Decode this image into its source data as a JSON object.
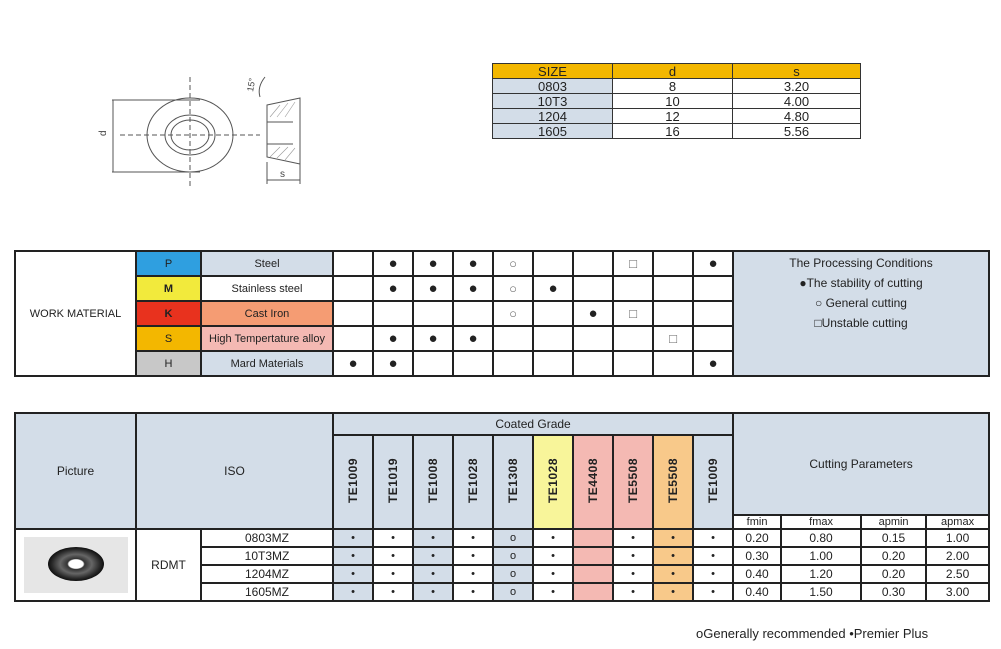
{
  "drawing": {
    "angle_label": "15°",
    "d_label": "d",
    "s_label": "s"
  },
  "size_table": {
    "headers": [
      "SIZE",
      "d",
      "s"
    ],
    "rows": [
      [
        "0803",
        "8",
        "3.20"
      ],
      [
        "10T3",
        "10",
        "4.00"
      ],
      [
        "1204",
        "12",
        "4.80"
      ],
      [
        "1605",
        "16",
        "5.56"
      ]
    ]
  },
  "work_material": {
    "label": "WORK MATERIAL",
    "rows": [
      {
        "code": "P",
        "name": "Steel",
        "code_color": "#2f9fe0",
        "name_color": "#d3dde8",
        "marks": [
          "",
          "●",
          "●",
          "●",
          "○",
          "",
          "",
          "□",
          "",
          "●"
        ]
      },
      {
        "code": "M",
        "name": "Stainless steel",
        "code_color": "#f2ea3c",
        "name_color": "#ffffff",
        "marks": [
          "",
          "●",
          "●",
          "●",
          "○",
          "●",
          "",
          "",
          "",
          ""
        ]
      },
      {
        "code": "K",
        "name": "Cast Iron",
        "code_color": "#e8321e",
        "name_color": "#f59c73",
        "marks": [
          "",
          "",
          "",
          "",
          "○",
          "",
          "●",
          "□",
          "",
          ""
        ]
      },
      {
        "code": "S",
        "name": "High Tempertature alloy",
        "code_color": "#f3b700",
        "name_color": "#f4b9b3",
        "marks": [
          "",
          "●",
          "●",
          "●",
          "",
          "",
          "",
          "",
          "□",
          ""
        ]
      },
      {
        "code": "H",
        "name": "Mard Materials",
        "code_color": "#c8c8c8",
        "name_color": "#d3dde8",
        "marks": [
          "●",
          "●",
          "",
          "",
          "",
          "",
          "",
          "",
          "",
          "●"
        ]
      }
    ],
    "conditions": {
      "title": "The Processing Conditions",
      "items": [
        "●The stability of cutting",
        "○ General cutting",
        "□Unstable cutting"
      ]
    }
  },
  "grade_table": {
    "picture_label": "Picture",
    "iso_label": "ISO",
    "coated_label": "Coated Grade",
    "cutting_label": "Cutting Parameters",
    "grades": [
      {
        "name": "TE1009",
        "color": "#d3dde8"
      },
      {
        "name": "TE1019",
        "color": "#d3dde8"
      },
      {
        "name": "TE1008",
        "color": "#d3dde8"
      },
      {
        "name": "TE1028",
        "color": "#d3dde8"
      },
      {
        "name": "TE1308",
        "color": "#d3dde8"
      },
      {
        "name": "TE1028",
        "color": "#f8f59a"
      },
      {
        "name": "TE4408",
        "color": "#f4b9b3"
      },
      {
        "name": "TE5508",
        "color": "#f4b9b3"
      },
      {
        "name": "TE5508",
        "color": "#f8c98a"
      },
      {
        "name": "TE1009",
        "color": "#d3dde8"
      }
    ],
    "column_fill": [
      "#d3dde8",
      "#ffffff",
      "#d3dde8",
      "#ffffff",
      "#d3dde8",
      "#ffffff",
      "#f4b9b3",
      "#ffffff",
      "#f8c98a",
      "#ffffff"
    ],
    "param_headers": [
      "fmin",
      "fmax",
      "apmin",
      "apmax"
    ],
    "family": "RDMT",
    "rows": [
      {
        "iso": "0803MZ",
        "marks": [
          "•",
          "•",
          "•",
          "•",
          "o",
          "•",
          "",
          "•",
          "•",
          "•"
        ],
        "params": [
          "0.20",
          "0.80",
          "0.15",
          "1.00"
        ]
      },
      {
        "iso": "10T3MZ",
        "marks": [
          "•",
          "•",
          "•",
          "•",
          "o",
          "•",
          "",
          "•",
          "•",
          "•"
        ],
        "params": [
          "0.30",
          "1.00",
          "0.20",
          "2.00"
        ]
      },
      {
        "iso": "1204MZ",
        "marks": [
          "•",
          "•",
          "•",
          "•",
          "o",
          "•",
          "",
          "•",
          "•",
          "•"
        ],
        "params": [
          "0.40",
          "1.20",
          "0.20",
          "2.50"
        ]
      },
      {
        "iso": "1605MZ",
        "marks": [
          "•",
          "•",
          "•",
          "•",
          "o",
          "•",
          "",
          "•",
          "•",
          "•"
        ],
        "params": [
          "0.40",
          "1.50",
          "0.30",
          "3.00"
        ]
      }
    ]
  },
  "footer": "oGenerally recommended  •Premier Plus"
}
